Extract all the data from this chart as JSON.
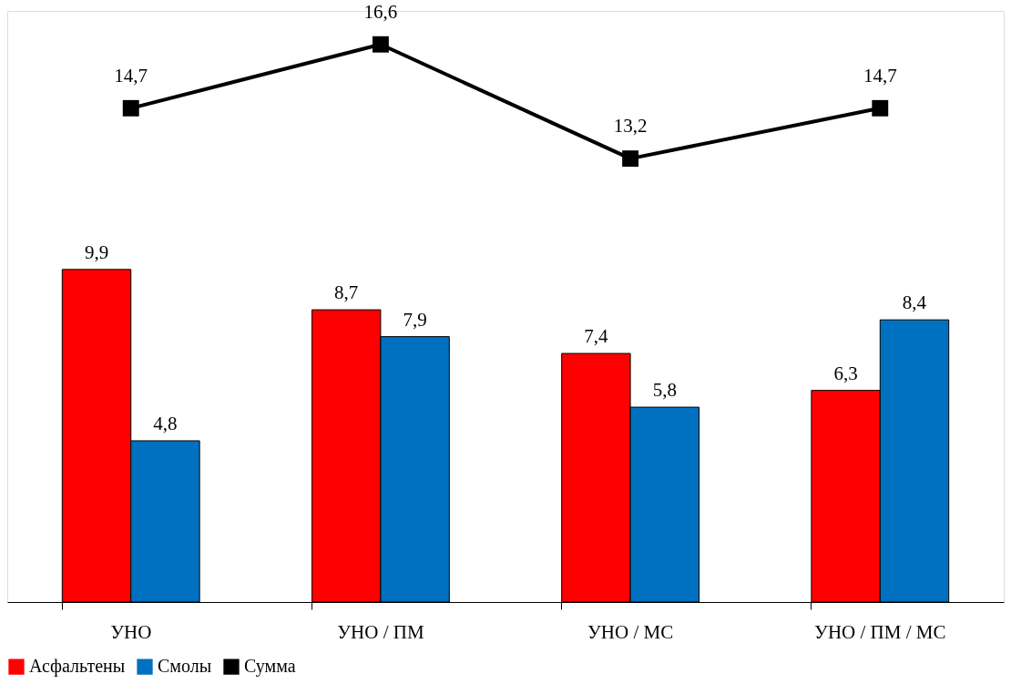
{
  "chart_data": {
    "type": "bar",
    "categories": [
      "УНО",
      "УНО / ПМ",
      "УНО / МС",
      "УНО / ПМ / МС"
    ],
    "series": [
      {
        "name": "Асфальтены",
        "color": "#ff0000",
        "values": [
          9.9,
          8.7,
          7.4,
          6.3
        ],
        "value_labels": [
          "9,9",
          "8,7",
          "7,4",
          "6,3"
        ]
      },
      {
        "name": "Смолы",
        "color": "#0070c0",
        "values": [
          4.8,
          7.9,
          5.8,
          8.4
        ],
        "value_labels": [
          "4,8",
          "7,9",
          "5,8",
          "8,4"
        ]
      },
      {
        "name": "Сумма",
        "type": "line",
        "color": "#000000",
        "marker": "square",
        "values": [
          14.7,
          16.6,
          13.2,
          14.7
        ],
        "value_labels": [
          "14,7",
          "16,6",
          "13,2",
          "14,7"
        ]
      }
    ],
    "legend": "bottom",
    "grid": false
  }
}
